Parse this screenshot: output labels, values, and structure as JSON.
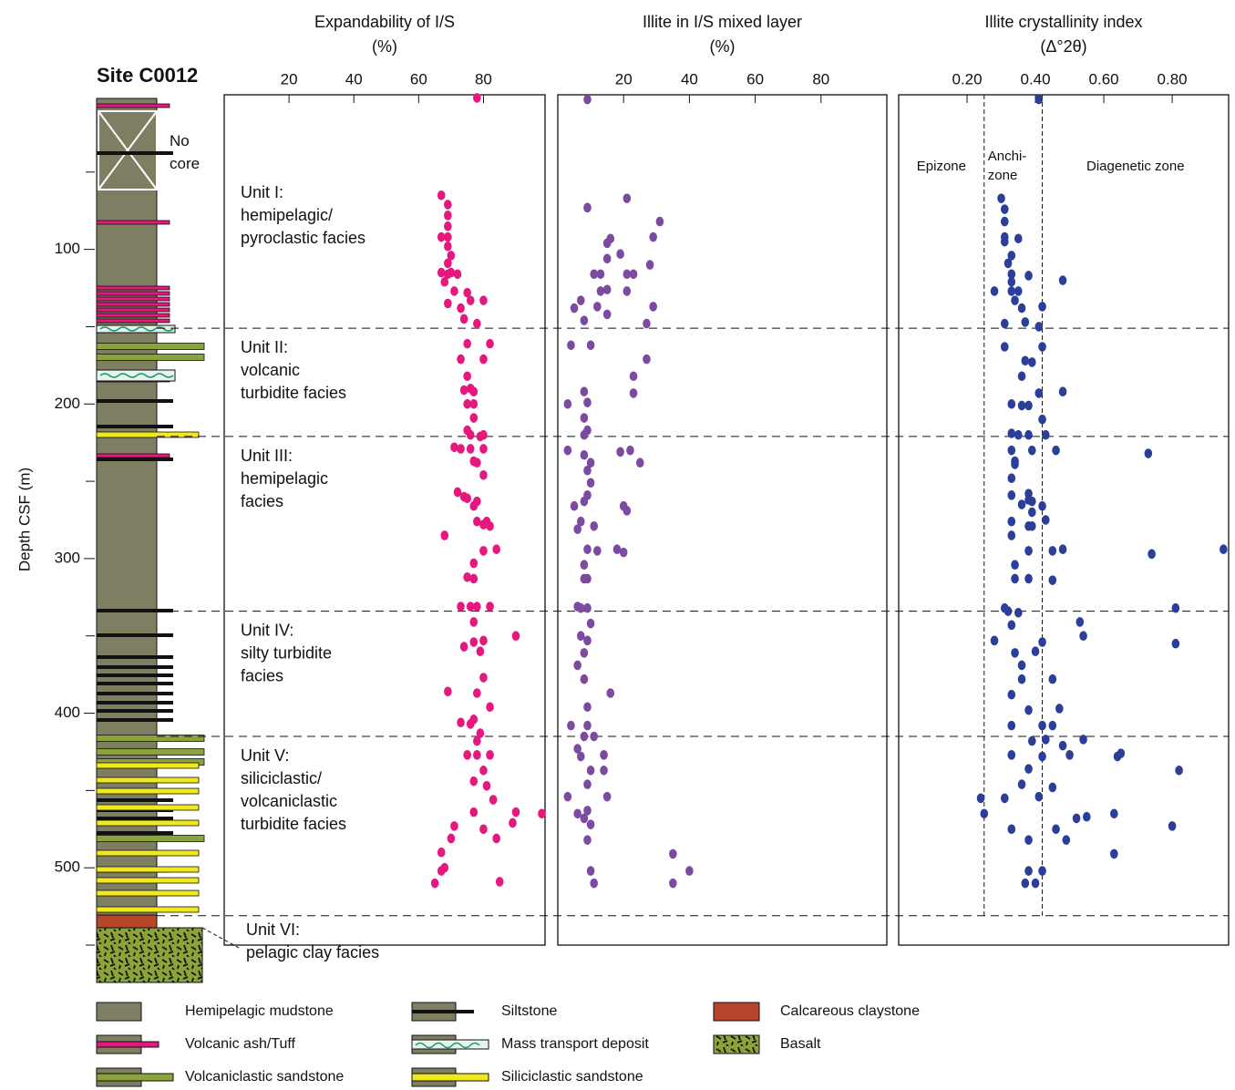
{
  "site": "Site C0012",
  "no_core": "No\ncore",
  "y_label": "Depth CSF  (m)",
  "units": [
    {
      "label": "Unit I:\nhemipelagic/\npyroclastic facies",
      "top": 0
    },
    {
      "label": "Unit II:\nvolcanic\nturbidite facies",
      "top": 151
    },
    {
      "label": "Unit III:\nhemipelagic\nfacies",
      "top": 221
    },
    {
      "label": "Unit IV:\nsilty turbidite\nfacies",
      "top": 334
    },
    {
      "label": "Unit V:\nsiliciclastic/\nvolcaniclastic\nturbidite facies",
      "top": 415
    },
    {
      "label": "Unit VI:\npelagic clay facies",
      "top": 531
    }
  ],
  "legend": [
    "Hemipelagic mudstone",
    "Volcanic ash/Tuff",
    "Volcaniclastic sandstone",
    "Siltstone",
    "Mass transport deposit",
    "Siliciclastic sandstone",
    "Calcareous claystone",
    "Basalt"
  ],
  "chart_data": [
    {
      "type": "scatter",
      "title": "Expandability of I/S",
      "x_unit": "(%)",
      "xlim": [
        0,
        99
      ],
      "xticks": [
        20,
        40,
        60,
        80
      ],
      "ylim": [
        0,
        550
      ],
      "yticks": [
        100,
        200,
        300,
        400,
        500
      ],
      "minor_yticks": [
        50,
        150,
        250,
        350,
        450,
        550
      ],
      "series": [
        {
          "color": "#e6177e",
          "x": [
            78,
            67,
            69,
            69,
            69,
            69,
            67,
            69,
            70,
            69,
            67,
            69,
            70,
            68,
            72,
            71,
            75,
            69,
            73,
            76,
            80,
            74,
            78,
            75,
            82,
            73,
            80,
            75,
            76,
            77,
            74,
            75,
            77,
            77,
            75,
            80,
            76,
            79,
            71,
            73,
            76,
            80,
            77,
            78,
            80,
            72,
            74,
            75,
            77,
            78,
            68,
            78,
            81,
            82,
            80,
            84,
            80,
            77,
            75,
            77,
            73,
            76,
            78,
            82,
            77,
            90,
            80,
            77,
            79,
            74,
            80,
            69,
            78,
            82,
            77,
            73,
            76,
            79,
            78,
            75,
            78,
            82,
            80,
            77,
            81,
            83,
            77,
            90,
            98,
            89,
            71,
            80,
            84,
            70,
            67,
            68,
            67,
            85,
            65
          ],
          "values": [
            2,
            65,
            71,
            78,
            85,
            92,
            92,
            98,
            104,
            109,
            115,
            116,
            115,
            121,
            116,
            127,
            128,
            135,
            138,
            133,
            133,
            145,
            148,
            161,
            161,
            171,
            171,
            182,
            190,
            192,
            191,
            200,
            200,
            209,
            217,
            220,
            220,
            221,
            228,
            229,
            229,
            229,
            237,
            238,
            246,
            257,
            260,
            261,
            266,
            263,
            285,
            276,
            276,
            279,
            278,
            294,
            295,
            303,
            312,
            313,
            331,
            331,
            331,
            331,
            341,
            350,
            353,
            354,
            360,
            357,
            377,
            386,
            387,
            396,
            404,
            406,
            407,
            413,
            418,
            427,
            427,
            427,
            437,
            444,
            447,
            456,
            464,
            464,
            465,
            471,
            473,
            475,
            481,
            481,
            490,
            500,
            502,
            509,
            510
          ]
        }
      ]
    },
    {
      "type": "scatter",
      "title": "Illite in I/S mixed layer",
      "x_unit": "(%)",
      "xlim": [
        0,
        100
      ],
      "xticks": [
        20,
        40,
        60,
        80
      ],
      "ylim": [
        0,
        550
      ],
      "series": [
        {
          "color": "#7c4aa0",
          "x": [
            9,
            21,
            9,
            31,
            29,
            16,
            15,
            19,
            15,
            28,
            11,
            13,
            21,
            23,
            15,
            13,
            21,
            7,
            12,
            5,
            29,
            15,
            8,
            27,
            4,
            10,
            27,
            23,
            3,
            8,
            9,
            23,
            8,
            9,
            8,
            3,
            19,
            22,
            25,
            8,
            10,
            9,
            10,
            9,
            8,
            5,
            20,
            21,
            7,
            11,
            6,
            9,
            18,
            12,
            20,
            8,
            8,
            9,
            6,
            7,
            9,
            10,
            7,
            9,
            8,
            6,
            8,
            16,
            9,
            4,
            9,
            8,
            11,
            6,
            14,
            7,
            10,
            14,
            3,
            9,
            15,
            9,
            6,
            8,
            10,
            9,
            35,
            40,
            10,
            35,
            11
          ],
          "values": [
            3,
            67,
            73,
            82,
            92,
            93,
            96,
            103,
            106,
            110,
            116,
            116,
            116,
            116,
            126,
            127,
            127,
            133,
            137,
            138,
            137,
            142,
            146,
            148,
            162,
            162,
            171,
            182,
            200,
            192,
            199,
            193,
            209,
            217,
            220,
            230,
            231,
            230,
            238,
            233,
            238,
            243,
            251,
            259,
            263,
            266,
            266,
            269,
            276,
            279,
            281,
            294,
            294,
            295,
            296,
            304,
            313,
            313,
            331,
            332,
            332,
            342,
            350,
            353,
            361,
            369,
            378,
            387,
            396,
            408,
            408,
            415,
            415,
            423,
            427,
            428,
            437,
            437,
            454,
            446,
            454,
            463,
            465,
            468,
            472,
            482,
            491,
            502,
            502,
            510,
            510
          ]
        }
      ]
    },
    {
      "type": "scatter",
      "title": "Illite crystallinity index",
      "x_unit": "(Δ°2θ)",
      "xlim": [
        0,
        0.965
      ],
      "xticks": [
        {
          "value": 0.2,
          "label": "0.20"
        },
        {
          "value": 0.4,
          "label": "0.40"
        },
        {
          "value": 0.6,
          "label": "0.60"
        },
        {
          "value": 0.8,
          "label": "0.80"
        }
      ],
      "ylim": [
        0,
        550
      ],
      "zone_boundaries": [
        0.25,
        0.42
      ],
      "zones": [
        "Epizone",
        "Anchi-\nzone",
        "Diagenetic zone"
      ],
      "series": [
        {
          "color": "#2a3e9a",
          "x": [
            0.41,
            0.3,
            0.31,
            0.31,
            0.31,
            0.31,
            0.35,
            0.33,
            0.32,
            0.33,
            0.38,
            0.48,
            0.33,
            0.28,
            0.33,
            0.35,
            0.34,
            0.36,
            0.42,
            0.37,
            0.31,
            0.41,
            0.31,
            0.42,
            0.37,
            0.39,
            0.36,
            0.48,
            0.33,
            0.36,
            0.38,
            0.41,
            0.42,
            0.33,
            0.35,
            0.38,
            0.43,
            0.33,
            0.39,
            0.46,
            0.73,
            0.34,
            0.34,
            0.33,
            0.33,
            0.38,
            0.38,
            0.39,
            0.36,
            0.42,
            0.39,
            0.38,
            0.33,
            0.39,
            0.43,
            0.33,
            0.45,
            0.48,
            0.38,
            0.74,
            0.95,
            0.34,
            0.34,
            0.38,
            0.45,
            0.31,
            0.32,
            0.35,
            0.81,
            0.53,
            0.33,
            0.54,
            0.28,
            0.42,
            0.4,
            0.34,
            0.81,
            0.36,
            0.45,
            0.36,
            0.33,
            0.47,
            0.38,
            0.33,
            0.42,
            0.45,
            0.39,
            0.54,
            0.43,
            0.48,
            0.33,
            0.42,
            0.5,
            0.65,
            0.64,
            0.38,
            0.82,
            0.36,
            0.45,
            0.41,
            0.31,
            0.24,
            0.25,
            0.63,
            0.55,
            0.52,
            0.46,
            0.33,
            0.8,
            0.49,
            0.38,
            0.63,
            0.42,
            0.38,
            0.37,
            0.4
          ],
          "values": [
            3,
            67,
            74,
            82,
            92,
            95,
            93,
            104,
            109,
            116,
            117,
            120,
            121,
            127,
            127,
            127,
            133,
            138,
            137,
            147,
            148,
            150,
            163,
            163,
            172,
            173,
            182,
            192,
            200,
            201,
            201,
            193,
            210,
            219,
            220,
            220,
            220,
            230,
            230,
            230,
            232,
            237,
            239,
            248,
            259,
            258,
            262,
            263,
            265,
            266,
            270,
            279,
            276,
            279,
            275,
            285,
            295,
            294,
            295,
            297,
            294,
            304,
            313,
            313,
            314,
            332,
            334,
            335,
            332,
            341,
            343,
            350,
            353,
            354,
            360,
            361,
            355,
            369,
            378,
            378,
            388,
            397,
            398,
            408,
            408,
            408,
            418,
            417,
            417,
            421,
            427,
            428,
            427,
            426,
            428,
            436,
            437,
            446,
            448,
            454,
            455,
            455,
            465,
            465,
            467,
            468,
            475,
            475,
            473,
            482,
            482,
            491,
            502,
            502,
            510,
            510
          ]
        }
      ]
    }
  ]
}
